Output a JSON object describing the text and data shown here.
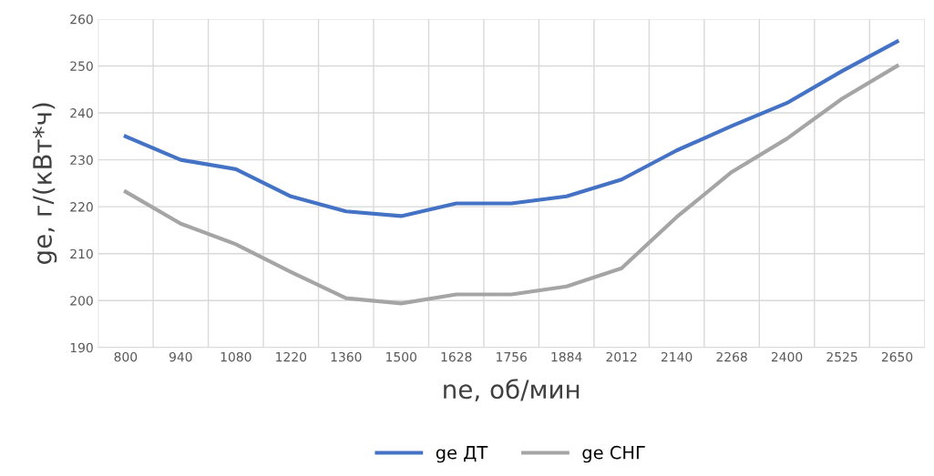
{
  "chart_data": {
    "type": "line",
    "xlabel": "ne, об/мин",
    "ylabel": "ge, г/(кВт*ч)",
    "categories": [
      "800",
      "940",
      "1080",
      "1220",
      "1360",
      "1500",
      "1628",
      "1756",
      "1884",
      "2012",
      "2140",
      "2268",
      "2400",
      "2525",
      "2650"
    ],
    "series": [
      {
        "name": "ge ДТ",
        "color": "#4472c4",
        "values": [
          235,
          230,
          228,
          222.2,
          219,
          218,
          220.7,
          220.7,
          222.2,
          225.8,
          232,
          237.2,
          242.1,
          248.9,
          255.2
        ]
      },
      {
        "name": "ge СНГ",
        "color": "#a5a5a5",
        "values": [
          223.2,
          216.4,
          212,
          206.1,
          200.5,
          199.4,
          201.3,
          201.3,
          203,
          206.9,
          217.8,
          227.4,
          234.5,
          243,
          250
        ]
      }
    ],
    "ylim": [
      190,
      260
    ],
    "yticks": [
      190,
      200,
      210,
      220,
      230,
      240,
      250,
      260
    ],
    "grid": true,
    "legend": "bottom",
    "line_style": "solid",
    "marker": "none"
  }
}
